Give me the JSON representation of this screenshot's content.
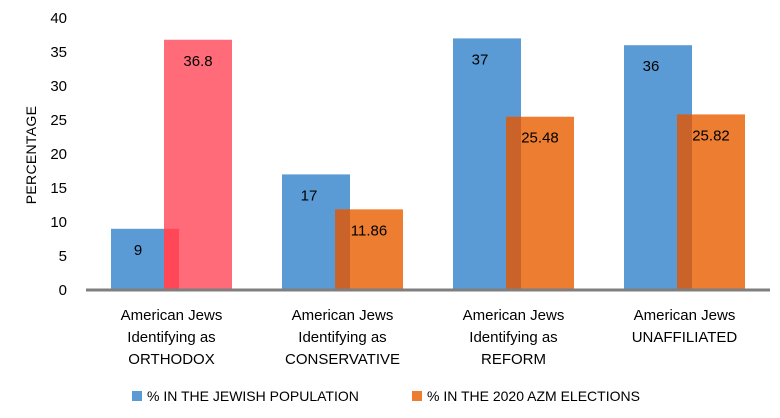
{
  "chart_data": {
    "type": "bar",
    "ylabel": "PERCENTAGE",
    "ylim": [
      0,
      40
    ],
    "yticks": [
      0,
      5,
      10,
      15,
      20,
      25,
      30,
      35,
      40
    ],
    "grid": false,
    "legend_position": "bottom",
    "categories": [
      [
        "American Jews",
        "Identifying as",
        "ORTHODOX"
      ],
      [
        "American Jews",
        "Identifying as",
        "CONSERVATIVE"
      ],
      [
        "American Jews",
        "Identifying as",
        "REFORM"
      ],
      [
        "American Jews",
        "UNAFFILIATED"
      ]
    ],
    "series": [
      {
        "name": "% IN THE JEWISH POPULATION",
        "color": "#5b9bd5",
        "values": [
          9,
          17,
          37,
          36
        ],
        "labels": [
          "9",
          "17",
          "37",
          "36"
        ]
      },
      {
        "name": "% IN THE 2020 AZM ELECTIONS",
        "color": "#ed7d31",
        "values": [
          36.8,
          11.86,
          25.48,
          25.82
        ],
        "labels": [
          "36.8",
          "11.86",
          "25.48",
          "25.82"
        ]
      }
    ],
    "highlight": {
      "category_index": 0,
      "color": "#ff6b78",
      "overlap_color": "#ff4757"
    },
    "overlap_color": "#c9632a"
  }
}
